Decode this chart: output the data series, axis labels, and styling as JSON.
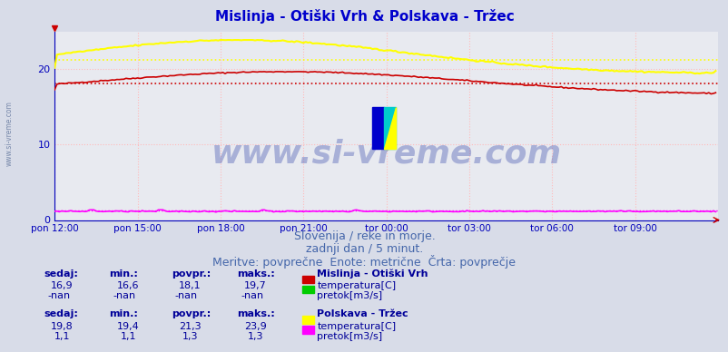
{
  "title": "Mislinja - Otiški Vrh & Polskava - Tržec",
  "title_color": "#0000cc",
  "title_fontsize": 11,
  "bg_color": "#d8dce8",
  "plot_bg_color": "#e8eaf0",
  "xlabel_color": "#0000bb",
  "ylabel_ticks": [
    0,
    10,
    20
  ],
  "ylim": [
    0,
    25
  ],
  "xlim": [
    0,
    288
  ],
  "xtick_labels": [
    "pon 12:00",
    "pon 15:00",
    "pon 18:00",
    "pon 21:00",
    "tor 00:00",
    "tor 03:00",
    "tor 06:00",
    "tor 09:00"
  ],
  "xtick_positions": [
    0,
    36,
    72,
    108,
    144,
    180,
    216,
    252
  ],
  "subtitle1": "Slovenija / reke in morje.",
  "subtitle2": "zadnji dan / 5 minut.",
  "subtitle3": "Meritve: povprečne  Enote: metrične  Črta: povprečje",
  "subtitle_color": "#4466aa",
  "subtitle_fontsize": 9,
  "watermark": "www.si-vreme.com",
  "mislinja_temp_color": "#cc0000",
  "mislinja_temp_avg": 18.1,
  "mislinja_temp_min": 16.6,
  "mislinja_temp_max": 19.7,
  "mislinja_temp_last": 16.9,
  "mislinja_temp_start": 17.3,
  "polskava_temp_color": "#ffff00",
  "polskava_temp_avg": 21.3,
  "polskava_temp_min": 19.4,
  "polskava_temp_max": 23.9,
  "polskava_temp_last": 19.8,
  "polskava_temp_start": 20.2,
  "polskava_pretok_color": "#ff00ff",
  "polskava_pretok_avg": 1.3,
  "polskava_pretok_min": 1.1,
  "polskava_pretok_max": 1.3,
  "polskava_pretok_last": 1.1,
  "axis_color": "#0000bb",
  "grid_line_color": "#ffbbbb",
  "avg_line_color_mis": "#cc0000",
  "avg_line_color_pol": "#ffff00",
  "avg_line_color_pretok": "#ff00ff",
  "table_label_color": "#000099",
  "table_value_color": "#000099",
  "sidebar_text_color": "#7788aa",
  "logo_blue": "#0000cc",
  "logo_cyan": "#00cccc",
  "logo_yellow": "#ffff00",
  "arrow_color": "#cc0000",
  "ytri_color": "#cc0000",
  "pretok_green": "#00cc00"
}
